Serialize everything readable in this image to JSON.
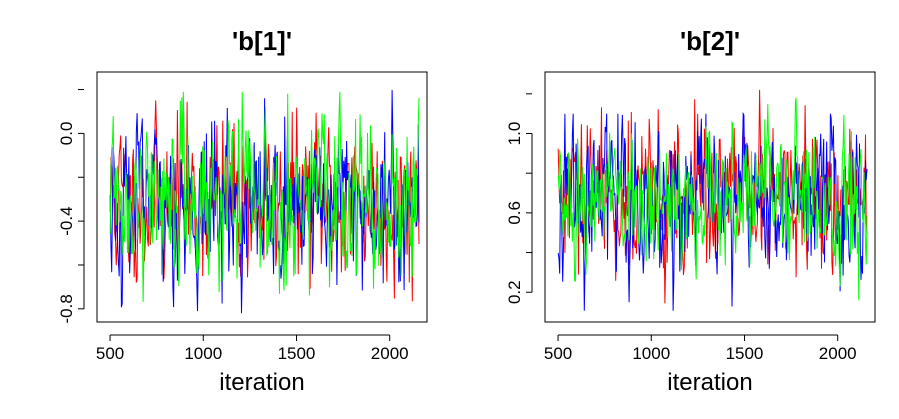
{
  "chart_data": [
    {
      "type": "line",
      "title": "'b[1]'",
      "xlabel": "iteration",
      "ylabel": "",
      "xlim": [
        430,
        2200
      ],
      "ylim": [
        -0.86,
        0.28
      ],
      "xticks": [
        500,
        1000,
        1500,
        2000
      ],
      "xtick_labels": [
        "500",
        "1000",
        "1500",
        "2000"
      ],
      "yticks": [
        -0.8,
        -0.4,
        0.0
      ],
      "ytick_labels": [
        "-0.8",
        "-0.4",
        "0.0"
      ],
      "grid": false,
      "legend": "none",
      "iterations": [
        501,
        2160
      ],
      "series": [
        {
          "color": "#ff0000",
          "mean": -0.31,
          "sd": 0.17,
          "min": -0.8,
          "max": 0.24
        },
        {
          "color": "#0000ff",
          "mean": -0.32,
          "sd": 0.17,
          "min": -0.82,
          "max": 0.2
        },
        {
          "color": "#00ff00",
          "mean": -0.29,
          "sd": 0.17,
          "min": -0.86,
          "max": 0.19
        }
      ]
    },
    {
      "type": "line",
      "title": "'b[2]'",
      "xlabel": "iteration",
      "ylabel": "",
      "xlim": [
        430,
        2200
      ],
      "ylim": [
        0.05,
        1.31
      ],
      "xticks": [
        500,
        1000,
        1500,
        2000
      ],
      "xtick_labels": [
        "500",
        "1000",
        "1500",
        "2000"
      ],
      "yticks": [
        0.2,
        0.6,
        1.0
      ],
      "ytick_labels": [
        "0.2",
        "0.6",
        "1.0"
      ],
      "grid": false,
      "legend": "none",
      "iterations": [
        501,
        2160
      ],
      "series": [
        {
          "color": "#ff0000",
          "mean": 0.67,
          "sd": 0.18,
          "min": 0.1,
          "max": 1.27
        },
        {
          "color": "#0000ff",
          "mean": 0.66,
          "sd": 0.18,
          "min": 0.05,
          "max": 1.1
        },
        {
          "color": "#00ff00",
          "mean": 0.68,
          "sd": 0.17,
          "min": 0.16,
          "max": 1.18
        }
      ]
    }
  ]
}
